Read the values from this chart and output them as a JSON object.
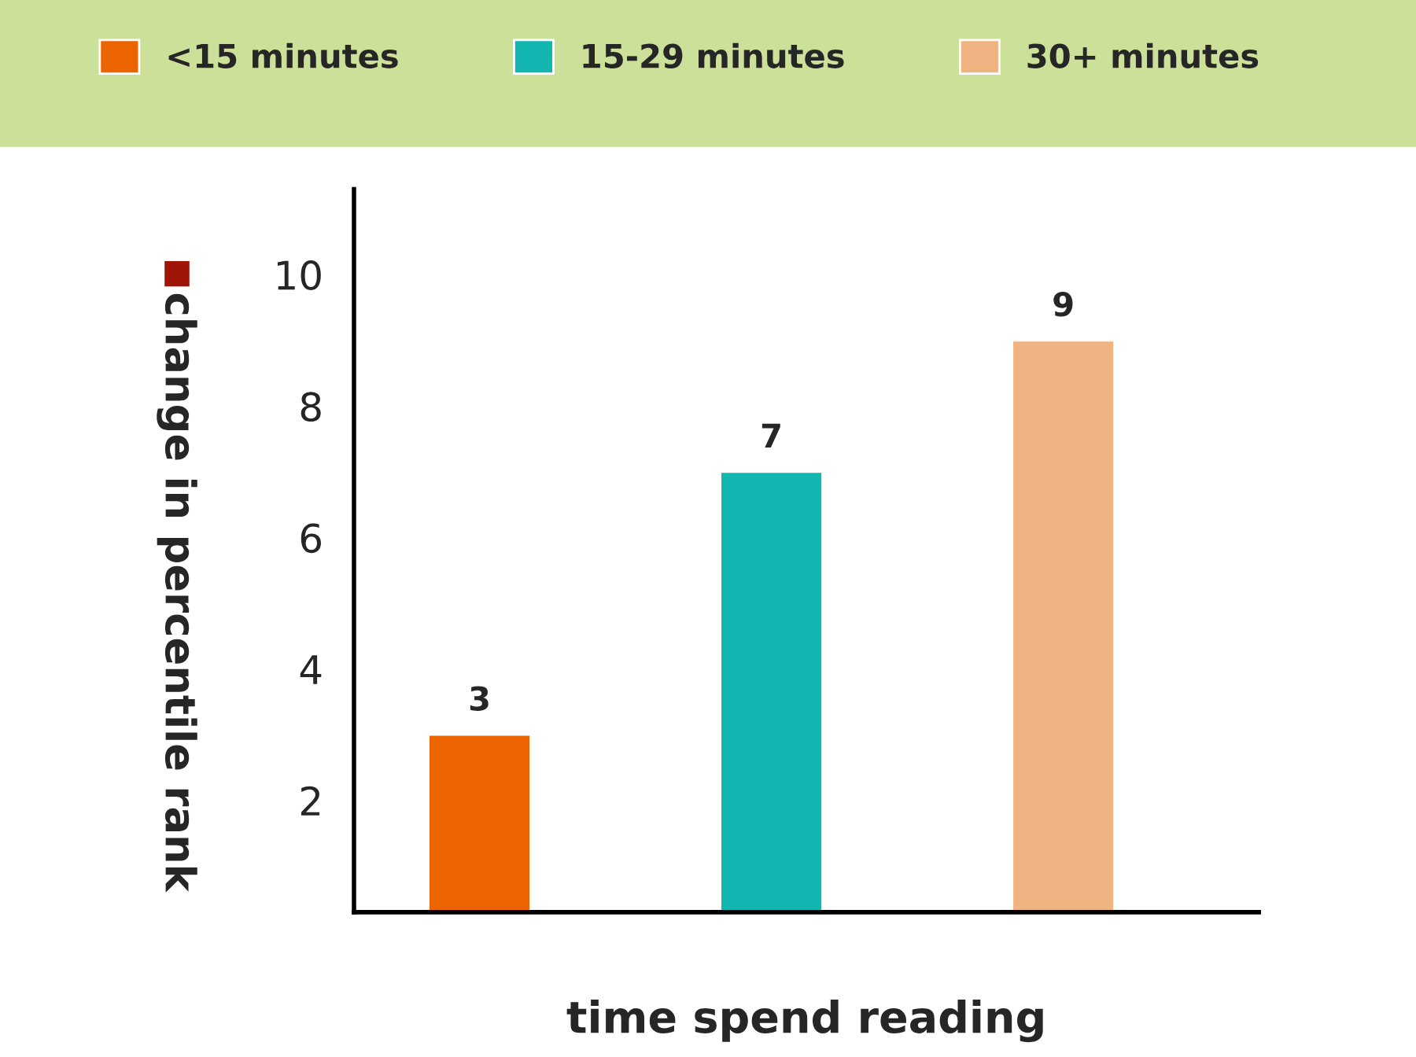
{
  "chart_data": {
    "type": "bar",
    "categories": [
      null
    ],
    "series": [
      {
        "name": "<15 minutes",
        "color": "#ec6400",
        "values": [
          3
        ]
      },
      {
        "name": "15-29 minutes",
        "color": "#13b5b1",
        "values": [
          7
        ]
      },
      {
        "name": "30+ minutes",
        "color": "#f0b482",
        "values": [
          9
        ]
      }
    ],
    "data_labels": true,
    "xlabel": "time spend reading",
    "ylabel": "change in percentile rank",
    "ylim": [
      0.3,
      11.3
    ],
    "yticks": [
      2,
      4,
      6,
      8,
      10
    ],
    "legend": "top",
    "tick_labels": "y",
    "grid": false
  }
}
